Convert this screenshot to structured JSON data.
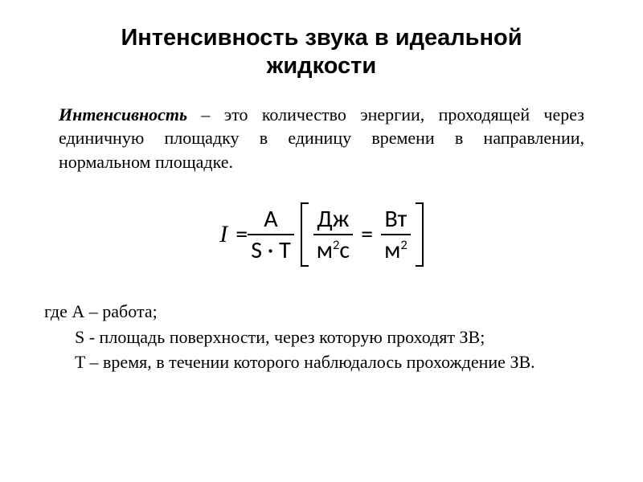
{
  "title_line1": "Интенсивность звука в идеальной",
  "title_line2": "жидкости",
  "definition_term": "Интенсивность",
  "definition_rest": " – это количество энергии, проходящей через единичную площадку в единицу времени в направлении, нормальном площадке.",
  "eq": {
    "I": "I",
    "equals": " = ",
    "frac1_num": "A",
    "frac1_den": "S · T",
    "unit1_num": "Дж",
    "unit1_den_a": "м",
    "unit1_den_sup": "2",
    "unit1_den_b": "с",
    "mid_equals": "=",
    "unit2_num": "Вт",
    "unit2_den_a": "м",
    "unit2_den_sup": "2"
  },
  "legend": {
    "l1_a": "где А – работа;",
    "l2": "S - площадь поверхности, через которую проходят ЗВ;",
    "l3": "T – время, в течении которого наблюдалось прохождение ЗВ."
  },
  "colors": {
    "bg": "#ffffff",
    "text": "#000000"
  }
}
